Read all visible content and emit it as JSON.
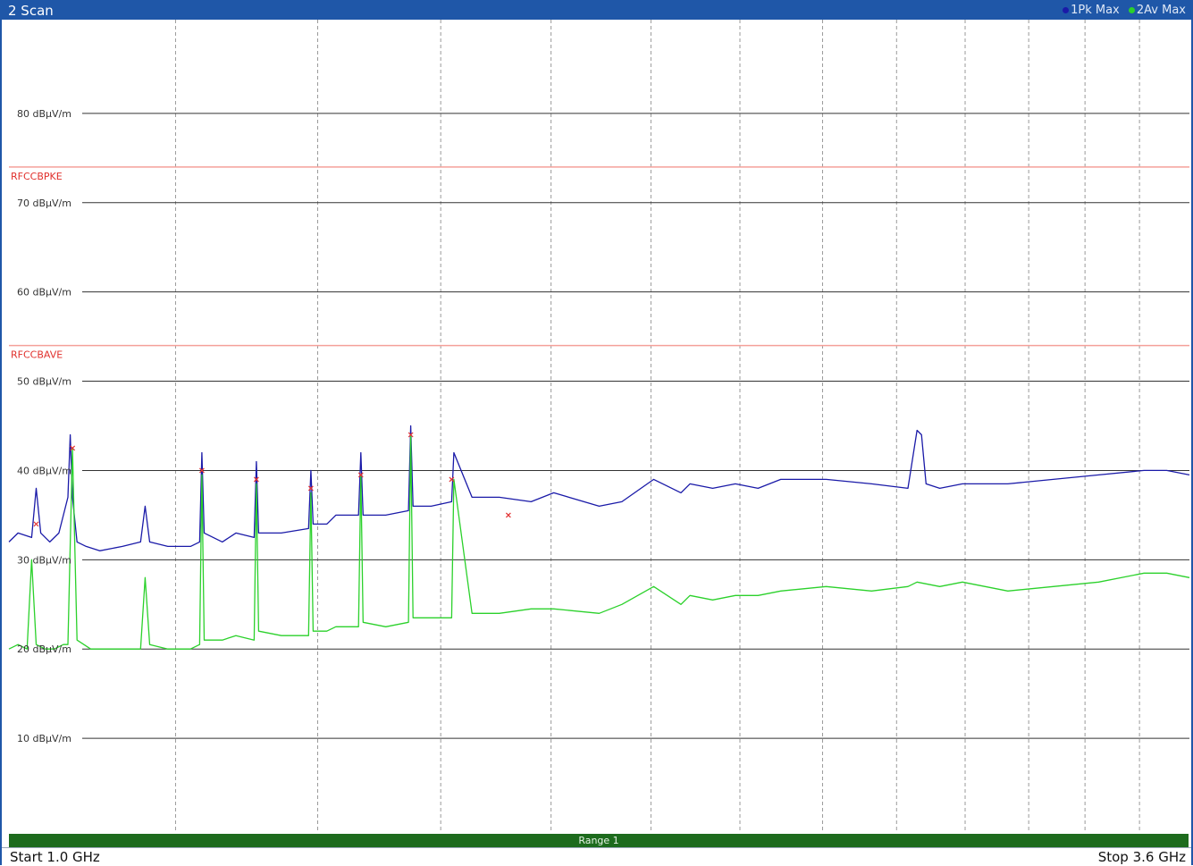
{
  "window": {
    "title": "2 Scan",
    "legend": [
      {
        "label": "1Pk Max",
        "color": "#1a1aa8"
      },
      {
        "label": "2Av Max",
        "color": "#2bd12b"
      }
    ]
  },
  "footer": {
    "start_label": "Start 1.0 GHz",
    "stop_label": "Stop 3.6 GHz",
    "range_label": "Range 1"
  },
  "colors": {
    "frame": "#1f57a8",
    "peak_trace": "#1a1aa8",
    "average_trace": "#2bd12b",
    "limit_line": "#f4a09a",
    "limit_label": "#e0302c",
    "marker": "#e23030",
    "range_bar": "#1d6b1d"
  },
  "chart_data": {
    "type": "line",
    "x_unit": "GHz",
    "xlim": [
      1.0,
      3.6
    ],
    "ylim": [
      -0.5,
      90.5
    ],
    "y_unit": "dBµV/m",
    "y_ticks": [
      10,
      20,
      30,
      40,
      50,
      60,
      70,
      80
    ],
    "y_tick_labels": [
      "10 dBµV/m",
      "20 dBµV/m",
      "30 dBµV/m",
      "40 dBµV/m",
      "50 dBµV/m",
      "60 dBµV/m",
      "70 dBµV/m",
      "80 dBµV/m"
    ],
    "grid": true,
    "x_grid_positions": [
      1.367,
      1.68,
      1.951,
      2.194,
      2.414,
      2.61,
      2.792,
      2.955,
      3.106,
      3.246,
      3.37,
      3.49
    ],
    "limit_lines": [
      {
        "name": "RFCCBPKE",
        "value": 74
      },
      {
        "name": "RFCCBAVE",
        "value": 54
      }
    ],
    "series": [
      {
        "name": "1Pk Max",
        "x": [
          1.0,
          1.02,
          1.05,
          1.06,
          1.07,
          1.09,
          1.11,
          1.13,
          1.135,
          1.14,
          1.15,
          1.17,
          1.2,
          1.25,
          1.29,
          1.3,
          1.31,
          1.35,
          1.4,
          1.42,
          1.425,
          1.43,
          1.47,
          1.5,
          1.54,
          1.545,
          1.55,
          1.6,
          1.66,
          1.665,
          1.67,
          1.7,
          1.72,
          1.77,
          1.775,
          1.78,
          1.83,
          1.88,
          1.885,
          1.89,
          1.93,
          1.975,
          1.98,
          2.02,
          2.08,
          2.15,
          2.2,
          2.3,
          2.35,
          2.42,
          2.48,
          2.5,
          2.55,
          2.6,
          2.65,
          2.7,
          2.8,
          2.9,
          2.98,
          3.0,
          3.01,
          3.02,
          3.05,
          3.1,
          3.2,
          3.3,
          3.4,
          3.5,
          3.55,
          3.6
        ],
        "y": [
          32,
          33,
          32.5,
          38,
          33,
          32,
          33,
          37,
          44,
          37,
          32,
          31.5,
          31,
          31.5,
          32,
          36,
          32,
          31.5,
          31.5,
          32,
          42,
          33,
          32,
          33,
          32.5,
          41,
          33,
          33,
          33.5,
          40,
          34,
          34,
          35,
          35,
          42,
          35,
          35,
          35.5,
          45,
          36,
          36,
          36.5,
          42,
          37,
          37,
          36.5,
          37.5,
          36,
          36.5,
          39,
          37.5,
          38.5,
          38,
          38.5,
          38,
          39,
          39,
          38.5,
          38,
          44.5,
          44,
          38.5,
          38,
          38.5,
          38.5,
          39,
          39.5,
          40,
          40,
          39.5
        ]
      },
      {
        "name": "2Av Max",
        "x": [
          1.0,
          1.02,
          1.04,
          1.05,
          1.06,
          1.08,
          1.1,
          1.12,
          1.13,
          1.14,
          1.15,
          1.18,
          1.22,
          1.25,
          1.29,
          1.3,
          1.31,
          1.35,
          1.4,
          1.42,
          1.425,
          1.43,
          1.47,
          1.5,
          1.54,
          1.545,
          1.55,
          1.6,
          1.66,
          1.665,
          1.67,
          1.7,
          1.72,
          1.77,
          1.775,
          1.78,
          1.83,
          1.88,
          1.885,
          1.89,
          1.93,
          1.975,
          1.98,
          2.02,
          2.08,
          2.15,
          2.2,
          2.3,
          2.35,
          2.42,
          2.48,
          2.5,
          2.55,
          2.6,
          2.65,
          2.7,
          2.8,
          2.9,
          2.98,
          3.0,
          3.05,
          3.1,
          3.2,
          3.3,
          3.4,
          3.5,
          3.55,
          3.6
        ],
        "y": [
          20,
          20.5,
          20,
          30,
          20.5,
          20,
          20,
          20.5,
          20.5,
          42.5,
          21,
          20,
          20,
          20,
          20,
          28,
          20.5,
          20,
          20,
          20.5,
          39.5,
          21,
          21,
          21.5,
          21,
          38.5,
          22,
          21.5,
          21.5,
          37.5,
          22,
          22,
          22.5,
          22.5,
          39.5,
          23,
          22.5,
          23,
          44,
          23.5,
          23.5,
          23.5,
          39,
          24,
          24,
          24.5,
          24.5,
          24,
          25,
          27,
          25,
          26,
          25.5,
          26,
          26,
          26.5,
          27,
          26.5,
          27,
          27.5,
          27,
          27.5,
          26.5,
          27,
          27.5,
          28.5,
          28.5,
          28
        ]
      }
    ],
    "markers": [
      {
        "x": 1.06,
        "y": 34,
        "series": "1Pk Max"
      },
      {
        "x": 1.14,
        "y": 42.5,
        "series": "1Pk Max"
      },
      {
        "x": 1.425,
        "y": 40,
        "series": "1Pk Max"
      },
      {
        "x": 1.545,
        "y": 39,
        "series": "1Pk Max"
      },
      {
        "x": 1.665,
        "y": 38,
        "series": "1Pk Max"
      },
      {
        "x": 1.775,
        "y": 39.5,
        "series": "1Pk Max"
      },
      {
        "x": 1.885,
        "y": 44,
        "series": "1Pk Max"
      },
      {
        "x": 1.975,
        "y": 39,
        "series": "1Pk Max"
      },
      {
        "x": 2.1,
        "y": 35,
        "series": "1Pk Max"
      }
    ]
  }
}
